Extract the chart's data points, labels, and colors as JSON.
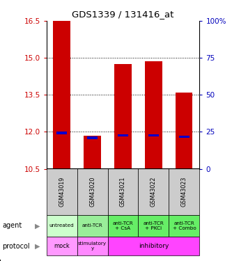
{
  "title": "GDS1339 / 131416_at",
  "samples": [
    "GSM43019",
    "GSM43020",
    "GSM43021",
    "GSM43022",
    "GSM43023"
  ],
  "bar_bottoms": [
    10.5,
    10.5,
    10.5,
    10.5,
    10.5
  ],
  "bar_tops": [
    16.5,
    11.85,
    14.75,
    14.85,
    13.6
  ],
  "percentile_values": [
    11.95,
    11.75,
    11.85,
    11.85,
    11.8
  ],
  "ylim": [
    10.5,
    16.5
  ],
  "yticks_left": [
    10.5,
    12.0,
    13.5,
    15.0,
    16.5
  ],
  "yticks_right_labels": [
    "0",
    "25",
    "50",
    "75",
    "100%"
  ],
  "bar_color": "#cc0000",
  "percentile_color": "#0000cc",
  "agent_row": [
    "untreated",
    "anti-TCR",
    "anti-TCR\n+ CsA",
    "anti-TCR\n+ PKCi",
    "anti-TCR\n+ Combo"
  ],
  "agent_colors": [
    "#ccffcc",
    "#99ee99",
    "#66ee66",
    "#66ee66",
    "#66ee66"
  ],
  "protocol_colors_individual": [
    "#ff99ff",
    "#ff88ff",
    "#ff44ff",
    "#ff44ff",
    "#ff44ff"
  ],
  "gsm_bg": "#cccccc",
  "left_label_color": "#cc0000",
  "right_label_color": "#0000bb",
  "legend_count_color": "#cc0000",
  "legend_percentile_color": "#0000cc"
}
